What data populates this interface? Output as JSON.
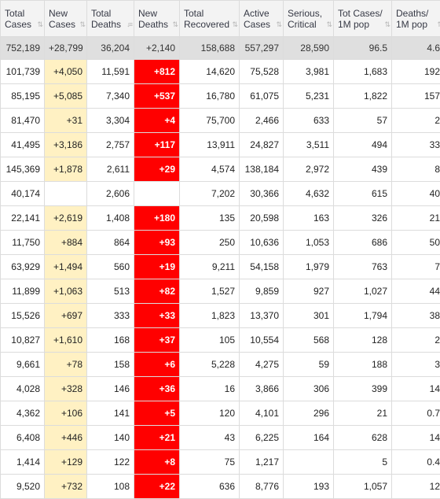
{
  "headers": [
    {
      "line1": "Total",
      "line2": "Cases",
      "sort": "⇅"
    },
    {
      "line1": "New",
      "line2": "Cases",
      "sort": "⇅"
    },
    {
      "line1": "Total",
      "line2": "Deaths",
      "sort": "↓≡"
    },
    {
      "line1": "New",
      "line2": "Deaths",
      "sort": "⇅"
    },
    {
      "line1": "Total",
      "line2": "Recovered",
      "sort": "⇅"
    },
    {
      "line1": "Active",
      "line2": "Cases",
      "sort": "⇅"
    },
    {
      "line1": "Serious,",
      "line2": "Critical",
      "sort": "⇅"
    },
    {
      "line1": "Tot Cases/",
      "line2": "1M pop",
      "sort": "⇅"
    },
    {
      "line1": "Deaths/",
      "line2": "1M pop",
      "sort": "⇅"
    }
  ],
  "total_row": [
    "752,189",
    "+28,799",
    "36,204",
    "+2,140",
    "158,688",
    "557,297",
    "28,590",
    "96.5",
    "4.6"
  ],
  "rows": [
    [
      "101,739",
      "+4,050",
      "11,591",
      "+812",
      "14,620",
      "75,528",
      "3,981",
      "1,683",
      "192"
    ],
    [
      "85,195",
      "+5,085",
      "7,340",
      "+537",
      "16,780",
      "61,075",
      "5,231",
      "1,822",
      "157"
    ],
    [
      "81,470",
      "+31",
      "3,304",
      "+4",
      "75,700",
      "2,466",
      "633",
      "57",
      "2"
    ],
    [
      "41,495",
      "+3,186",
      "2,757",
      "+117",
      "13,911",
      "24,827",
      "3,511",
      "494",
      "33"
    ],
    [
      "145,369",
      "+1,878",
      "2,611",
      "+29",
      "4,574",
      "138,184",
      "2,972",
      "439",
      "8"
    ],
    [
      "40,174",
      "",
      "2,606",
      "",
      "7,202",
      "30,366",
      "4,632",
      "615",
      "40"
    ],
    [
      "22,141",
      "+2,619",
      "1,408",
      "+180",
      "135",
      "20,598",
      "163",
      "326",
      "21"
    ],
    [
      "11,750",
      "+884",
      "864",
      "+93",
      "250",
      "10,636",
      "1,053",
      "686",
      "50"
    ],
    [
      "63,929",
      "+1,494",
      "560",
      "+19",
      "9,211",
      "54,158",
      "1,979",
      "763",
      "7"
    ],
    [
      "11,899",
      "+1,063",
      "513",
      "+82",
      "1,527",
      "9,859",
      "927",
      "1,027",
      "44"
    ],
    [
      "15,526",
      "+697",
      "333",
      "+33",
      "1,823",
      "13,370",
      "301",
      "1,794",
      "38"
    ],
    [
      "10,827",
      "+1,610",
      "168",
      "+37",
      "105",
      "10,554",
      "568",
      "128",
      "2"
    ],
    [
      "9,661",
      "+78",
      "158",
      "+6",
      "5,228",
      "4,275",
      "59",
      "188",
      "3"
    ],
    [
      "4,028",
      "+328",
      "146",
      "+36",
      "16",
      "3,866",
      "306",
      "399",
      "14"
    ],
    [
      "4,362",
      "+106",
      "141",
      "+5",
      "120",
      "4,101",
      "296",
      "21",
      "0.7"
    ],
    [
      "6,408",
      "+446",
      "140",
      "+21",
      "43",
      "6,225",
      "164",
      "628",
      "14"
    ],
    [
      "1,414",
      "+129",
      "122",
      "+8",
      "75",
      "1,217",
      "",
      "5",
      "0.4"
    ],
    [
      "9,520",
      "+732",
      "108",
      "+22",
      "636",
      "8,776",
      "193",
      "1,057",
      "12"
    ]
  ],
  "colors": {
    "new_cases_bg": "#fff1c3",
    "new_deaths_bg": "#ff0000",
    "header_bg": "#f3f3f3",
    "total_bg": "#dfdfdf"
  }
}
